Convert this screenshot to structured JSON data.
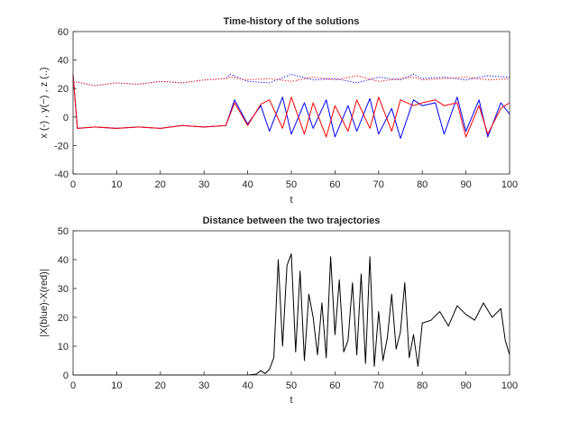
{
  "figure": {
    "background": "#ffffff"
  },
  "chart_data": [
    {
      "type": "line",
      "title": "Time-history of the solutions",
      "xlabel": "t",
      "ylabel": "x (-) , y(−) , z (..)",
      "xlim": [
        0,
        100
      ],
      "ylim": [
        -40,
        60
      ],
      "xticks": [
        "0",
        "10",
        "20",
        "30",
        "40",
        "50",
        "60",
        "70",
        "80",
        "90",
        "100"
      ],
      "yticks": [
        "-40",
        "-20",
        "0",
        "20",
        "40",
        "60"
      ],
      "grid": false,
      "legend": "none",
      "series": [
        {
          "color": "#0000ff",
          "style": "dotted",
          "x": [
            0,
            5,
            10,
            15,
            20,
            25,
            30,
            35,
            36,
            40,
            45,
            50,
            55,
            60,
            65,
            70,
            75,
            78,
            80,
            85,
            90,
            95,
            100
          ],
          "y": [
            25,
            22,
            24,
            23,
            25,
            24,
            26,
            27,
            30,
            25,
            24,
            30,
            26,
            27,
            24,
            28,
            26,
            30,
            27,
            28,
            26,
            29,
            28
          ]
        },
        {
          "color": "#ff0000",
          "style": "dotted",
          "x": [
            0,
            5,
            10,
            15,
            20,
            25,
            30,
            35,
            36,
            40,
            45,
            50,
            55,
            60,
            65,
            70,
            75,
            78,
            80,
            85,
            90,
            95,
            100
          ],
          "y": [
            25,
            22,
            24,
            23,
            25,
            24,
            26,
            27,
            28,
            26,
            27,
            25,
            28,
            26,
            29,
            25,
            27,
            28,
            26,
            27,
            28,
            26,
            27
          ]
        },
        {
          "color": "#0000ff",
          "style": "solid",
          "x": [
            0,
            1,
            5,
            10,
            15,
            20,
            25,
            30,
            35,
            37,
            40,
            43,
            45,
            48,
            50,
            53,
            55,
            58,
            60,
            63,
            65,
            68,
            70,
            73,
            75,
            78,
            80,
            83,
            85,
            88,
            90,
            93,
            95,
            98,
            100
          ],
          "y": [
            30,
            -8,
            -7,
            -8,
            -7,
            -8,
            -6,
            -7,
            -6,
            12,
            -5,
            8,
            -10,
            14,
            -12,
            10,
            -8,
            12,
            -14,
            8,
            -10,
            13,
            -12,
            6,
            -15,
            12,
            8,
            10,
            -12,
            14,
            -10,
            12,
            -14,
            10,
            2
          ]
        },
        {
          "color": "#ff0000",
          "style": "solid",
          "x": [
            0,
            1,
            5,
            10,
            15,
            20,
            25,
            30,
            35,
            37,
            40,
            43,
            45,
            48,
            50,
            53,
            55,
            58,
            60,
            63,
            65,
            68,
            70,
            73,
            75,
            78,
            80,
            83,
            85,
            88,
            90,
            93,
            95,
            98,
            100
          ],
          "y": [
            30,
            -8,
            -7,
            -8,
            -7,
            -8,
            -6,
            -7,
            -6,
            10,
            -6,
            9,
            12,
            -8,
            14,
            -12,
            10,
            -14,
            8,
            -10,
            12,
            -8,
            14,
            -10,
            12,
            8,
            10,
            12,
            8,
            10,
            -14,
            8,
            -12,
            6,
            10
          ]
        }
      ]
    },
    {
      "type": "line",
      "title": "Distance between the two trajectories",
      "xlabel": "t",
      "ylabel": "|X(blue)-X(red)|",
      "xlim": [
        0,
        100
      ],
      "ylim": [
        0,
        50
      ],
      "xticks": [
        "0",
        "10",
        "20",
        "30",
        "40",
        "50",
        "60",
        "70",
        "80",
        "90",
        "100"
      ],
      "yticks": [
        "0",
        "10",
        "20",
        "30",
        "40",
        "50"
      ],
      "grid": false,
      "legend": "none",
      "series": [
        {
          "color": "#000000",
          "style": "solid",
          "x": [
            0,
            10,
            20,
            30,
            40,
            42,
            43,
            44,
            45,
            46,
            47,
            48,
            49,
            50,
            51,
            52,
            53,
            54,
            55,
            56,
            57,
            58,
            59,
            60,
            61,
            62,
            63,
            64,
            65,
            66,
            67,
            68,
            69,
            70,
            71,
            72,
            73,
            74,
            75,
            76,
            77,
            78,
            79,
            80,
            82,
            84,
            86,
            88,
            90,
            92,
            94,
            96,
            98,
            99,
            100
          ],
          "y": [
            0,
            0,
            0,
            0,
            0,
            0.3,
            1.5,
            0.5,
            2,
            6,
            40,
            10,
            38,
            42,
            8,
            36,
            5,
            28,
            20,
            7,
            25,
            6,
            41,
            14,
            33,
            8,
            12,
            32,
            7,
            35,
            4,
            41,
            3,
            22,
            5,
            13,
            28,
            9,
            15,
            32,
            6,
            14,
            3,
            18,
            19,
            22,
            17,
            24,
            21,
            19,
            25,
            20,
            23,
            12,
            7
          ]
        }
      ]
    }
  ]
}
